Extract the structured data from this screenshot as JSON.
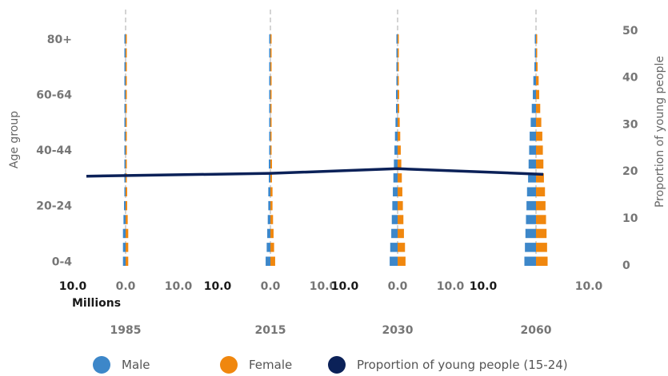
{
  "chart_data": {
    "type": "population_pyramids_with_line",
    "panels": [
      {
        "year": "1985",
        "male": [
          0.5,
          0.5,
          0.5,
          0.4,
          0.3,
          0.2,
          0.2,
          0.1,
          0.1,
          0.1,
          0.1,
          0.1,
          0.1,
          0.1,
          0.1,
          0.1,
          0.1
        ],
        "female": [
          0.5,
          0.5,
          0.5,
          0.4,
          0.3,
          0.3,
          0.2,
          0.1,
          0.1,
          0.1,
          0.1,
          0.1,
          0.1,
          0.1,
          0.1,
          0.1,
          0.1
        ],
        "scale_labels": {
          "left": "10.0",
          "center": "0.0",
          "right": "10.0"
        }
      },
      {
        "year": "2015",
        "male": [
          0.9,
          0.7,
          0.6,
          0.5,
          0.4,
          0.4,
          0.3,
          0.3,
          0.2,
          0.2,
          0.1,
          0.1,
          0.1,
          0.1,
          0.1,
          0.1,
          0.1
        ],
        "female": [
          0.9,
          0.7,
          0.6,
          0.5,
          0.4,
          0.4,
          0.3,
          0.3,
          0.2,
          0.2,
          0.1,
          0.1,
          0.1,
          0.1,
          0.1,
          0.1,
          0.1
        ],
        "scale_labels": {
          "left": "10.0",
          "center": "0.0",
          "right": "10.0"
        }
      },
      {
        "year": "2030",
        "male": [
          1.5,
          1.4,
          1.2,
          1.1,
          1.0,
          0.9,
          0.8,
          0.7,
          0.6,
          0.5,
          0.4,
          0.3,
          0.3,
          0.2,
          0.2,
          0.1,
          0.1
        ],
        "female": [
          1.5,
          1.4,
          1.2,
          1.1,
          1.0,
          0.9,
          0.8,
          0.7,
          0.6,
          0.5,
          0.4,
          0.3,
          0.3,
          0.2,
          0.2,
          0.1,
          0.1
        ],
        "scale_labels": {
          "left": "10.0",
          "center": "0.0",
          "right": "10.0"
        }
      },
      {
        "year": "2060",
        "male": [
          2.2,
          2.1,
          2.0,
          1.9,
          1.8,
          1.7,
          1.5,
          1.4,
          1.3,
          1.2,
          1.0,
          0.8,
          0.6,
          0.5,
          0.3,
          0.2,
          0.1
        ],
        "female": [
          2.2,
          2.1,
          2.0,
          1.9,
          1.8,
          1.7,
          1.5,
          1.4,
          1.3,
          1.2,
          1.0,
          0.8,
          0.6,
          0.5,
          0.3,
          0.2,
          0.1
        ],
        "scale_labels": {
          "left": "10.0",
          "center": "",
          "right": "10.0"
        }
      }
    ],
    "line": {
      "name": "Proportion of young people (15-24)",
      "values": [
        18.9,
        19.5,
        20.5,
        19.3
      ]
    },
    "left_axis": {
      "label": "Age group",
      "ticks": [
        "0-4",
        "20-24",
        "40-44",
        "60-64",
        "80+"
      ]
    },
    "right_axis": {
      "label": "Proportion of young people",
      "ticks": [
        0,
        10,
        20,
        30,
        40,
        50
      ],
      "range": [
        -0.2,
        51.5
      ]
    },
    "x_unit_label": "Millions",
    "age_groups": 17,
    "male_scale_max": 10,
    "legend": [
      {
        "label": "Male",
        "color": "#3d87c9"
      },
      {
        "label": "Female",
        "color": "#f0870e"
      },
      {
        "label": "Proportion of young people (15-24)",
        "color": "#0b2158"
      }
    ]
  },
  "colors": {
    "male": "#3d87c9",
    "female": "#f0870e",
    "line": "#0b2158",
    "tick": "#767676",
    "dark": "#1a1a1a",
    "axis_label": "#666666",
    "grid": "#aaaaaa"
  }
}
